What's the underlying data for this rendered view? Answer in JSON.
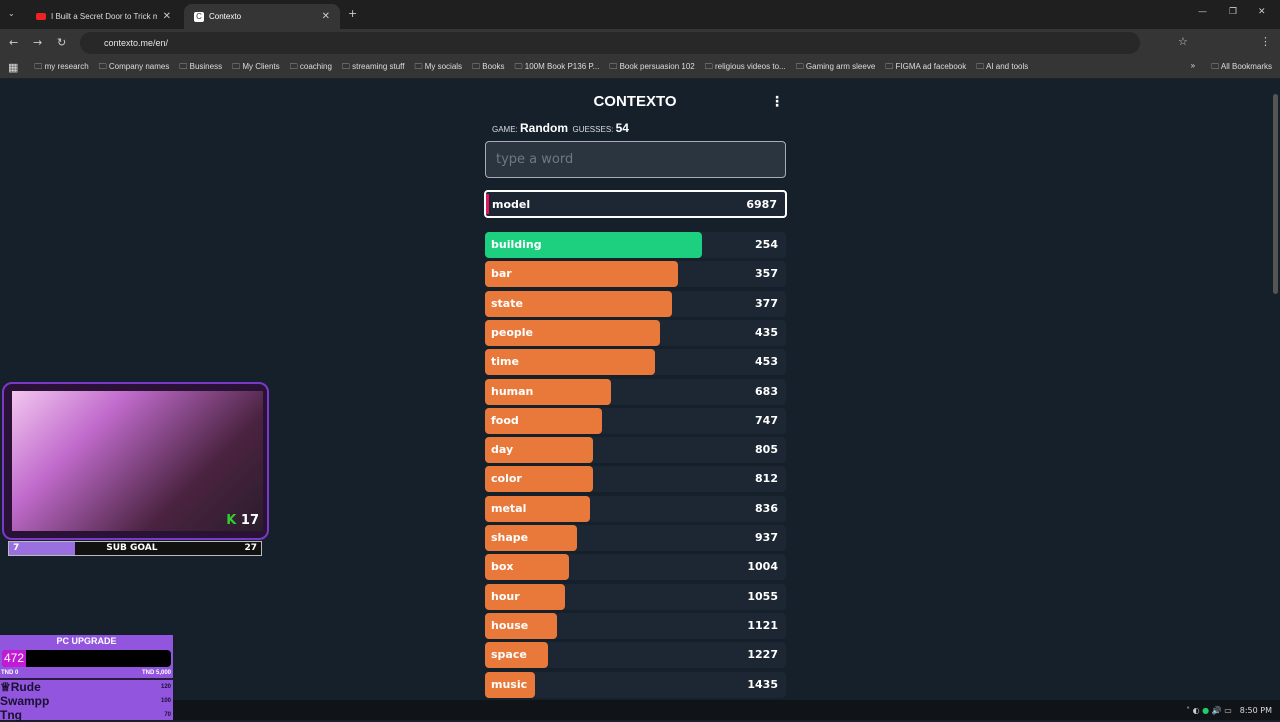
{
  "browser": {
    "tabs": [
      {
        "title": "I Built a Secret Door to Trick m",
        "icon": "youtube-icon"
      },
      {
        "title": "Contexto",
        "icon": "contexto-icon"
      }
    ],
    "url": "contexto.me/en/",
    "bookmarks": [
      "my research",
      "Company names",
      "Business",
      "My Clients",
      "coaching",
      "streaming stuff",
      "My socials",
      "Books",
      "100M Book P136 P...",
      "Book persuasion 102",
      "religious videos to...",
      "Gaming arm sleeve",
      "FIGMA ad facebook",
      "AI and tools"
    ],
    "all_bookmarks": "All Bookmarks"
  },
  "game": {
    "title": "CONTEXTO",
    "game_label": "GAME:",
    "game_value": "Random",
    "guesses_label": "GUESSES:",
    "guesses_value": "54",
    "placeholder": "type a word",
    "last_guess": {
      "word": "model",
      "rank": "6987"
    },
    "colors": {
      "green": "#1dd07f",
      "orange": "#e8793a",
      "pink": "#e0165e"
    },
    "guesses": [
      {
        "word": "building",
        "rank": "254",
        "fill": 0.72,
        "color": "green"
      },
      {
        "word": "bar",
        "rank": "357",
        "fill": 0.64,
        "color": "orange"
      },
      {
        "word": "state",
        "rank": "377",
        "fill": 0.62,
        "color": "orange"
      },
      {
        "word": "people",
        "rank": "435",
        "fill": 0.58,
        "color": "orange"
      },
      {
        "word": "time",
        "rank": "453",
        "fill": 0.565,
        "color": "orange"
      },
      {
        "word": "human",
        "rank": "683",
        "fill": 0.42,
        "color": "orange"
      },
      {
        "word": "food",
        "rank": "747",
        "fill": 0.39,
        "color": "orange"
      },
      {
        "word": "day",
        "rank": "805",
        "fill": 0.36,
        "color": "orange"
      },
      {
        "word": "color",
        "rank": "812",
        "fill": 0.36,
        "color": "orange"
      },
      {
        "word": "metal",
        "rank": "836",
        "fill": 0.35,
        "color": "orange"
      },
      {
        "word": "shape",
        "rank": "937",
        "fill": 0.305,
        "color": "orange"
      },
      {
        "word": "box",
        "rank": "1004",
        "fill": 0.28,
        "color": "orange"
      },
      {
        "word": "hour",
        "rank": "1055",
        "fill": 0.265,
        "color": "orange"
      },
      {
        "word": "house",
        "rank": "1121",
        "fill": 0.24,
        "color": "orange"
      },
      {
        "word": "space",
        "rank": "1227",
        "fill": 0.21,
        "color": "orange"
      },
      {
        "word": "music",
        "rank": "1435",
        "fill": 0.165,
        "color": "orange"
      }
    ]
  },
  "overlay": {
    "cam_badge": "17",
    "sub_goal": {
      "label": "SUB GOAL",
      "current": "7",
      "target": "27",
      "fill": 0.26
    },
    "pc_upgrade": {
      "title": "PC UPGRADE",
      "value": "472",
      "min": "TND 0",
      "max": "TND 5,000",
      "fill": 0.094,
      "donors": [
        {
          "name": "Rude",
          "amount": "120"
        },
        {
          "name": "Swampp",
          "amount": "100"
        },
        {
          "name": "Tng",
          "amount": "70"
        }
      ]
    }
  },
  "taskbar": {
    "time": "8:50 PM"
  }
}
